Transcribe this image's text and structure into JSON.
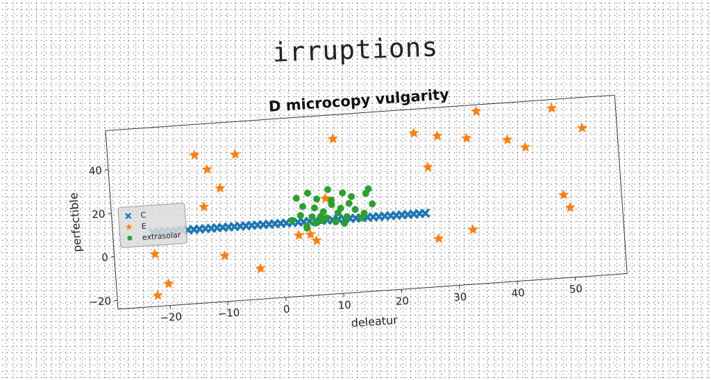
{
  "super_title": "irruptions",
  "chart_data": {
    "type": "scatter",
    "title": "D microcopy vulgarity",
    "xlabel": "deleatur",
    "ylabel": "perfectible",
    "xlim": [
      -29,
      59
    ],
    "ylim": [
      -24,
      58
    ],
    "xticks": [
      -20,
      -10,
      0,
      10,
      20,
      30,
      40,
      50
    ],
    "yticks": [
      -20,
      0,
      20,
      40
    ],
    "grid": false,
    "legend_position": "center-left",
    "series": [
      {
        "name": "C",
        "marker": "x",
        "color": "#1f77b4",
        "x": [
          -22,
          -21,
          -20,
          -19,
          -18,
          -17,
          -16,
          -15,
          -14,
          -13,
          -12,
          -11,
          -10,
          -9,
          -8,
          -7,
          -6,
          -5,
          -4,
          -3,
          -2,
          -1,
          0,
          1,
          2,
          3,
          4,
          5,
          6,
          7,
          8,
          9,
          10,
          11,
          12,
          13,
          14,
          15,
          16,
          17,
          18,
          19,
          20,
          21,
          22,
          23,
          24,
          25
        ],
        "y": [
          10,
          10,
          10,
          10,
          10,
          10,
          10,
          10,
          10,
          10,
          10,
          10,
          10,
          10,
          10,
          10,
          10,
          10,
          10,
          10,
          10,
          10,
          10,
          10,
          10,
          10,
          10,
          10,
          10,
          10,
          10,
          10,
          10,
          10,
          10,
          10,
          10,
          10,
          10,
          10,
          10,
          10,
          10,
          10,
          10,
          10,
          10,
          10
        ]
      },
      {
        "name": "E",
        "marker": "star",
        "color": "#ff7f0e",
        "x": [
          -22,
          -20,
          -22,
          -14,
          -12,
          -10,
          -13,
          -10,
          -7,
          -4,
          3,
          5,
          6,
          8,
          10,
          24,
          26,
          28,
          33,
          33,
          35,
          40,
          43,
          48,
          49,
          50,
          53,
          27
        ],
        "y": [
          -19,
          -14,
          0,
          44,
          37,
          28,
          20,
          -3,
          43,
          -10,
          4,
          4,
          1,
          20,
          47,
          47,
          31,
          45,
          43,
          1,
          55,
          41,
          37,
          54,
          14,
          8,
          44,
          -2
        ]
      },
      {
        "name": "extrasolar",
        "marker": "circle",
        "color": "#2ca02c",
        "x": [
          2,
          3,
          3.5,
          4,
          4.5,
          5,
          5.5,
          6,
          6.5,
          7,
          7.5,
          8,
          8.5,
          9,
          9.5,
          10,
          10.5,
          11,
          11.5,
          12,
          12.5,
          13,
          14,
          14.5,
          15,
          15.5,
          16,
          4.5,
          6,
          7,
          9,
          11
        ],
        "y": [
          11,
          21,
          13,
          17,
          8,
          23,
          12,
          16,
          20,
          10,
          14,
          11,
          24,
          19,
          9,
          13,
          15,
          22,
          11,
          17,
          20,
          14,
          10,
          12,
          21,
          23,
          16,
          7,
          9,
          12,
          17,
          8
        ]
      }
    ]
  }
}
